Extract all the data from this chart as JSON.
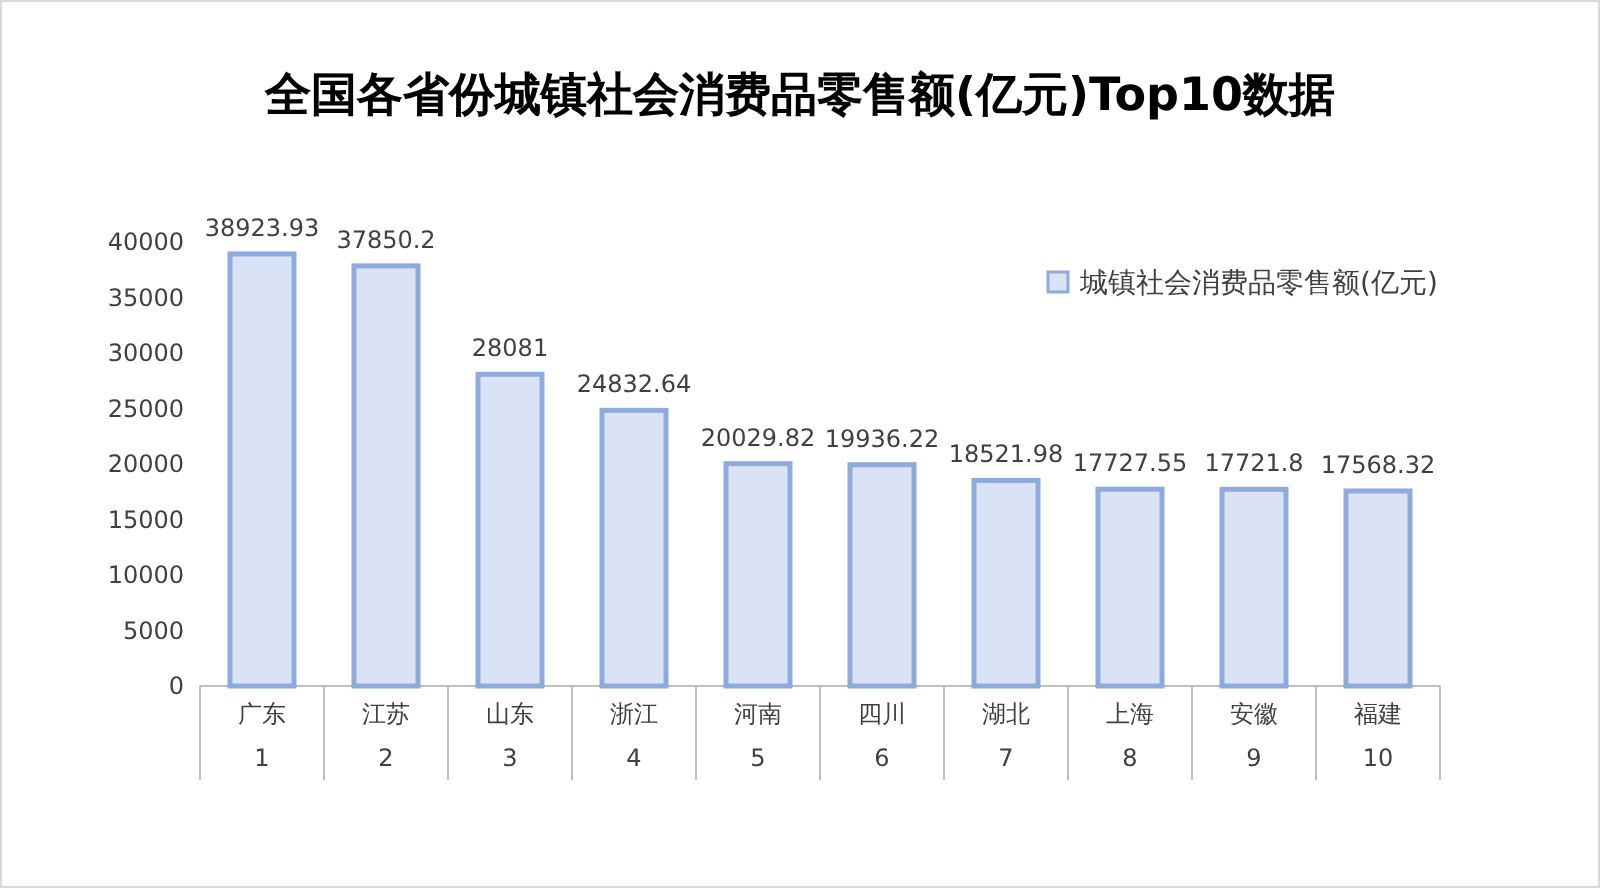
{
  "chart_data": {
    "type": "bar",
    "title": "全国各省份城镇社会消费品零售额(亿元)Top10数据",
    "categories": [
      "广东\n1",
      "江苏\n2",
      "山东\n3",
      "浙江\n4",
      "河南\n5",
      "四川\n6",
      "湖北\n7",
      "上海\n8",
      "安徽\n9",
      "福建\n10"
    ],
    "series": [
      {
        "name": "城镇社会消费品零售额(亿元)",
        "color": "#dae3f5",
        "values": [
          38923.93,
          37850.2,
          28081,
          24832.64,
          20029.82,
          19936.22,
          18521.98,
          17727.55,
          17721.8,
          17568.32
        ]
      }
    ],
    "ylim": [
      0,
      40000
    ],
    "yticks": [
      0,
      5000,
      10000,
      15000,
      20000,
      25000,
      30000,
      35000,
      40000
    ],
    "data_labels": true,
    "legend": "top right"
  }
}
